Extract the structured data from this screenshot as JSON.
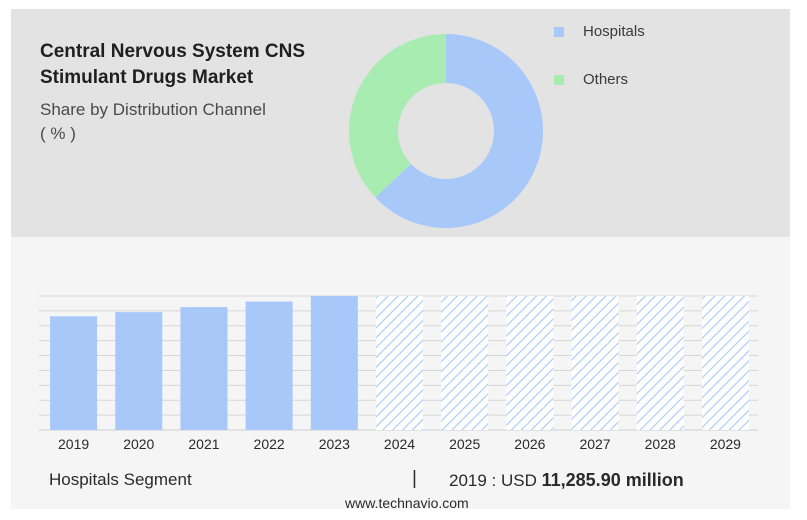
{
  "header": {
    "title_line1": "Central Nervous System CNS",
    "title_line2": "Stimulant Drugs Market",
    "subtitle": "Share by Distribution Channel",
    "unit": "( % )"
  },
  "colors": {
    "hospitals": "#a8c8fa",
    "others": "#a8ecb2",
    "forecast_hatch": "#a8c8fa"
  },
  "chart_data": [
    {
      "type": "pie",
      "style": "donut",
      "slices": [
        {
          "label": "Hospitals",
          "value": 63,
          "color": "#a8c8fa"
        },
        {
          "label": "Others",
          "value": 37,
          "color": "#a8ecb2"
        }
      ],
      "legend_position": "top-right"
    },
    {
      "type": "bar",
      "categories": [
        "2019",
        "2020",
        "2021",
        "2022",
        "2023",
        "2024",
        "2025",
        "2026",
        "2027",
        "2028",
        "2029"
      ],
      "values": [
        11285.9,
        11700,
        12200,
        12750,
        13300,
        13300,
        13300,
        13300,
        13300,
        13300,
        13300
      ],
      "forecast_from_index": 5,
      "ylim": [
        0,
        13300
      ],
      "grid": true
    }
  ],
  "footer": {
    "segment_label": "Hospitals Segment",
    "separator": "|",
    "value_prefix": "2019 : USD",
    "value_bold": "11,285.90 million"
  },
  "source": "www.technavio.com"
}
